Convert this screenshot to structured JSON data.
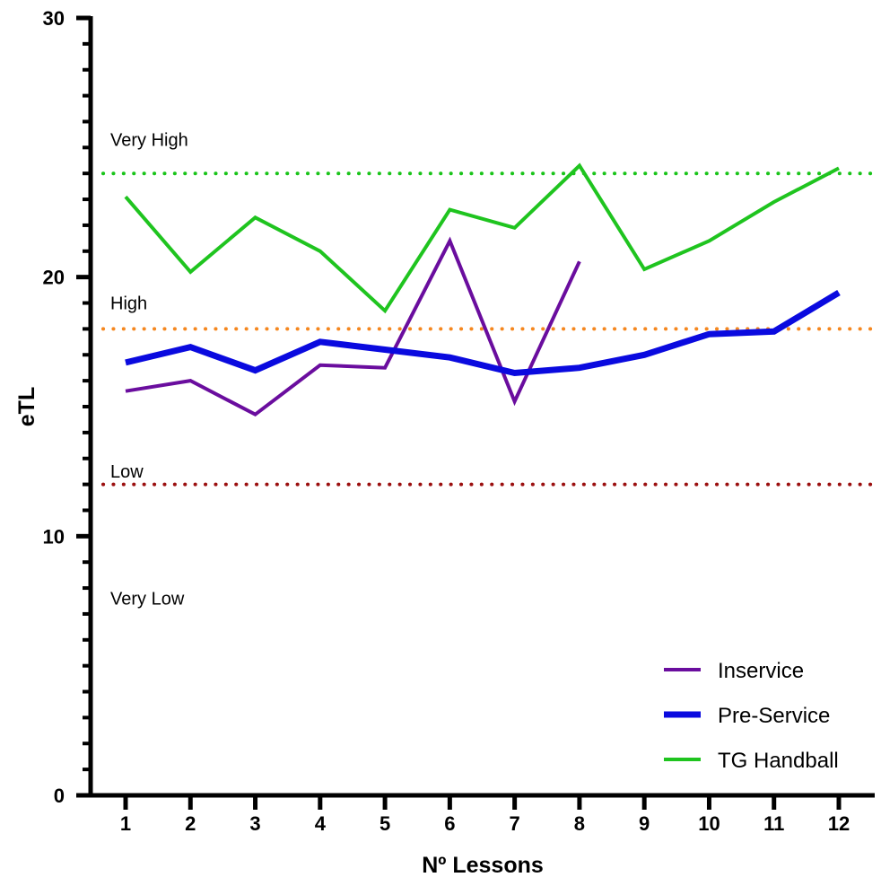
{
  "chart_data": {
    "type": "line",
    "xlabel": "Nº Lessons",
    "ylabel": "eTL",
    "x": [
      1,
      2,
      3,
      4,
      5,
      6,
      7,
      8,
      9,
      10,
      11,
      12
    ],
    "xlim": [
      0.5,
      12.6
    ],
    "ylim": [
      0,
      30
    ],
    "y_ticks": [
      0,
      10,
      20,
      30
    ],
    "grid": false,
    "legend_position": "bottom-right",
    "series": [
      {
        "name": "Inservice",
        "color": "#6a0d9e",
        "width": 4,
        "values": [
          15.6,
          16.0,
          14.7,
          16.6,
          16.5,
          21.4,
          15.2,
          20.6,
          null,
          null,
          null,
          null
        ]
      },
      {
        "name": "Pre-Service",
        "color": "#0a0adf",
        "width": 7,
        "values": [
          16.7,
          17.3,
          16.4,
          17.5,
          17.2,
          16.9,
          16.3,
          16.5,
          17.0,
          17.8,
          17.9,
          19.4
        ]
      },
      {
        "name": "TG Handball",
        "color": "#1fc41f",
        "width": 4,
        "values": [
          23.1,
          20.2,
          22.3,
          21.0,
          18.7,
          22.6,
          21.9,
          24.3,
          20.3,
          21.4,
          22.9,
          24.2
        ]
      }
    ],
    "reference_lines": [
      {
        "value": 24,
        "color": "#19c419"
      },
      {
        "value": 18,
        "color": "#f5871f"
      },
      {
        "value": 12,
        "color": "#9b0f0f"
      }
    ],
    "zone_labels": [
      {
        "text": "Very High",
        "value": 25.3
      },
      {
        "text": "High",
        "value": 19.0
      },
      {
        "text": "Low",
        "value": 12.5
      },
      {
        "text": "Very Low",
        "value": 7.6
      }
    ]
  }
}
